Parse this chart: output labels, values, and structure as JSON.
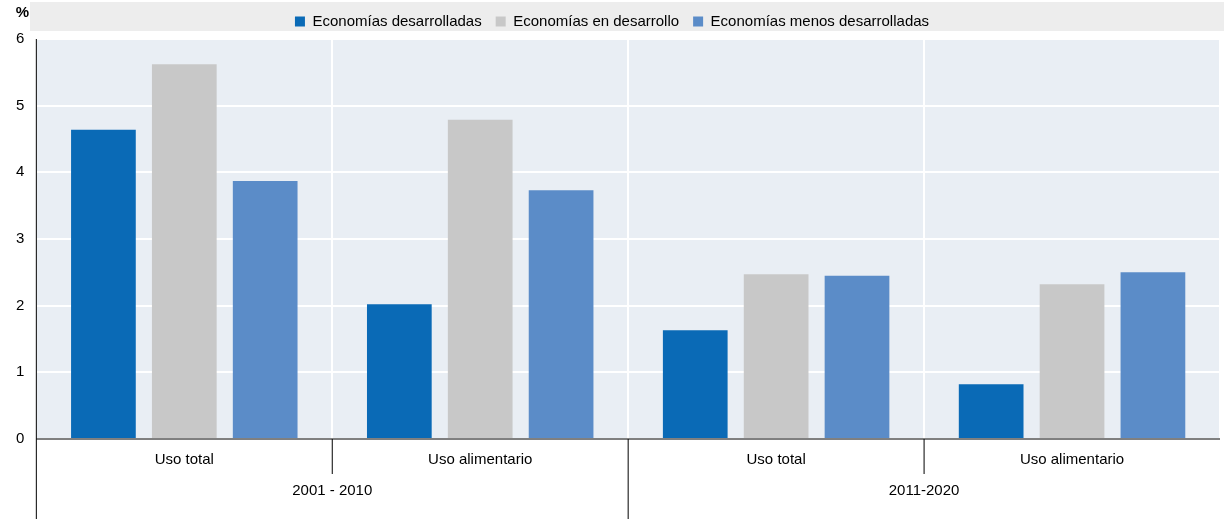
{
  "chart_data": {
    "type": "bar",
    "ylabel": "%",
    "categories": [
      "Uso total",
      "Uso alimentario",
      "Uso total",
      "Uso alimentario"
    ],
    "series": [
      {
        "name": "Economías desarrolladas",
        "color": "#0a6ab6",
        "values": [
          4.64,
          2.02,
          1.63,
          0.82
        ]
      },
      {
        "name": "Economías en desarrollo",
        "color": "#c8c8c8",
        "values": [
          5.62,
          4.79,
          2.47,
          2.32
        ]
      },
      {
        "name": "Economías menos desarrolladas",
        "color": "#5b8cc8",
        "values": [
          3.87,
          3.73,
          2.45,
          2.5
        ]
      }
    ],
    "ylim": [
      0,
      6
    ],
    "yticks": [
      0,
      1,
      2,
      3,
      4,
      5,
      6
    ],
    "grid": true,
    "legend": "top",
    "annotations": [
      "2001 - 2010",
      "2011-2020"
    ]
  }
}
